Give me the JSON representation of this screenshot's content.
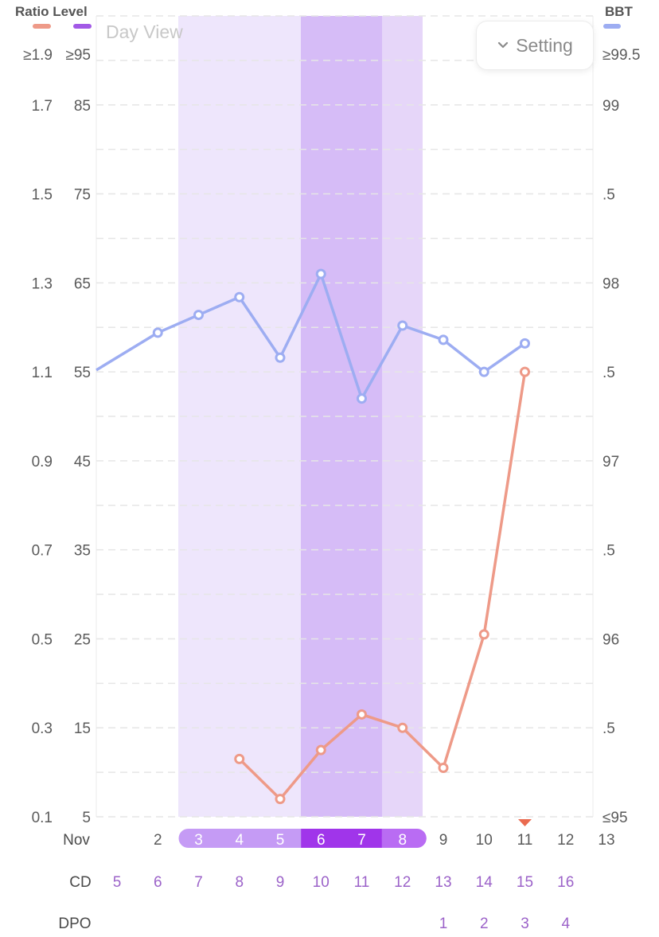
{
  "legend": {
    "left_title": "Ratio Level",
    "right_title": "BBT",
    "colors": {
      "ratio": "#ee9a88",
      "level": "#a259e6",
      "bbt": "#9dadf2"
    }
  },
  "header": {
    "view_label": "Day View",
    "setting_label": "Setting"
  },
  "axes": {
    "ratio_ticks": [
      "≥1.9",
      "1.7",
      "1.5",
      "1.3",
      "1.1",
      "0.9",
      "0.7",
      "0.5",
      "0.3",
      "0.1"
    ],
    "level_ticks": [
      "≥95",
      "85",
      "75",
      "65",
      "55",
      "45",
      "35",
      "25",
      "15",
      "5"
    ],
    "bbt_ticks": [
      "≥99.5",
      "99",
      ".5",
      "98",
      ".5",
      "97",
      ".5",
      "96",
      ".5",
      "≤95"
    ]
  },
  "rows": {
    "month_label": "Nov",
    "cd_label": "CD",
    "dpo_label": "DPO",
    "days": [
      "",
      "2",
      "3",
      "4",
      "5",
      "6",
      "7",
      "8",
      "9",
      "10",
      "11",
      "12",
      "13"
    ],
    "cd": [
      "5",
      "6",
      "7",
      "8",
      "9",
      "10",
      "11",
      "12",
      "13",
      "14",
      "15",
      "16",
      ""
    ],
    "dpo": [
      "",
      "",
      "",
      "",
      "",
      "",
      "",
      "",
      "1",
      "2",
      "3",
      "4",
      ""
    ]
  },
  "chart_data": {
    "type": "line",
    "x": [
      "Nov 1",
      "Nov 2",
      "Nov 3",
      "Nov 4",
      "Nov 5",
      "Nov 6",
      "Nov 7",
      "Nov 8",
      "Nov 9",
      "Nov 10",
      "Nov 11",
      "Nov 12",
      "Nov 13"
    ],
    "fertile_window": {
      "light": [
        "Nov 3",
        "Nov 4",
        "Nov 5"
      ],
      "peak": [
        "Nov 6",
        "Nov 7"
      ],
      "medium": [
        "Nov 8"
      ]
    },
    "marker_day": "Nov 11",
    "series": [
      {
        "name": "BBT",
        "axis": "right",
        "color": "#9dadf2",
        "x": [
          "Nov 1",
          "Nov 2",
          "Nov 3",
          "Nov 4",
          "Nov 5",
          "Nov 6",
          "Nov 7",
          "Nov 8",
          "Nov 9",
          "Nov 10",
          "Nov 11"
        ],
        "values": [
          97.51,
          97.72,
          97.82,
          97.92,
          97.58,
          98.05,
          97.35,
          97.76,
          97.68,
          97.5,
          97.66
        ],
        "markers": [
          false,
          true,
          true,
          true,
          true,
          true,
          true,
          true,
          true,
          true,
          true
        ]
      },
      {
        "name": "Ratio",
        "axis": "left",
        "color": "#ee9a88",
        "x": [
          "Nov 4",
          "Nov 5",
          "Nov 6",
          "Nov 7",
          "Nov 8",
          "Nov 9",
          "Nov 10",
          "Nov 11"
        ],
        "values": [
          0.23,
          0.14,
          0.25,
          0.33,
          0.3,
          0.21,
          0.51,
          1.1
        ]
      }
    ],
    "ylim_left": [
      0.1,
      1.9
    ],
    "ylim_right": [
      95,
      99.5
    ],
    "grid": true
  }
}
